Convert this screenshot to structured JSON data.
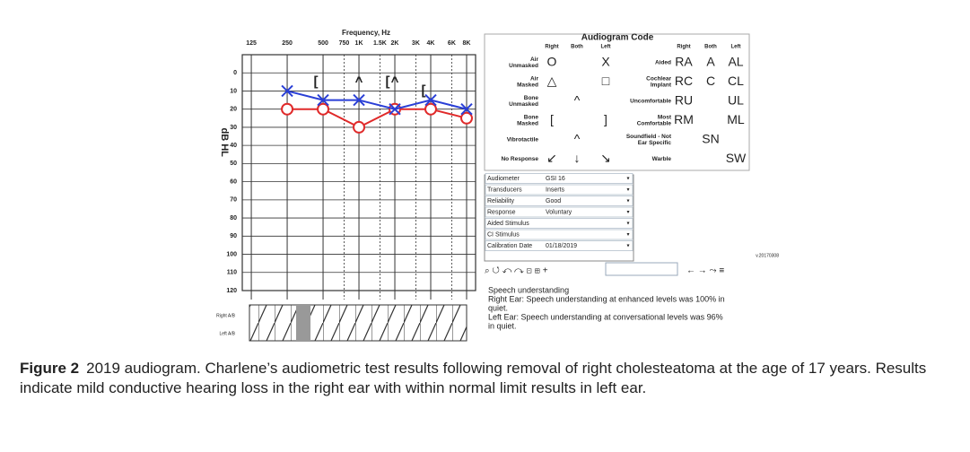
{
  "chart_data": {
    "type": "line",
    "xlabel": "Frequency, Hz",
    "ylabel": "dB HL",
    "xlog": true,
    "y_inverted": true,
    "xlim": [
      105,
      9514
    ],
    "ylim": [
      -10,
      120
    ],
    "xticks": [
      125,
      250,
      500,
      750,
      {
        "value": 1000,
        "label": "1K"
      },
      {
        "value": 1500,
        "label": "1.5K"
      },
      {
        "value": 2000,
        "label": "2K"
      },
      {
        "value": 3000,
        "label": "3K"
      },
      {
        "value": 4000,
        "label": "4K"
      },
      {
        "value": 6000,
        "label": "6K"
      },
      {
        "value": 8000,
        "label": "8K"
      }
    ],
    "yticks": [
      0,
      10,
      20,
      30,
      40,
      50,
      60,
      70,
      80,
      90,
      100,
      110,
      120
    ],
    "grid": true,
    "series": [
      {
        "color": "#e02a2a",
        "marker": "circle",
        "line": true,
        "x": [
          250,
          500,
          1000,
          2000,
          4000,
          8000
        ],
        "values": [
          20,
          20,
          30,
          20,
          20,
          25
        ]
      },
      {
        "color": "#2a3fd6",
        "marker": "x",
        "line": true,
        "x": [
          250,
          500,
          1000,
          2000,
          4000,
          8000
        ],
        "values": [
          10,
          15,
          15,
          20,
          15,
          20
        ]
      },
      {
        "color": "#e02a2a",
        "marker": "[",
        "line": false,
        "x": [
          500,
          2000,
          4000
        ],
        "values": [
          5,
          5,
          10
        ]
      },
      {
        "color": "#222222",
        "marker": "^",
        "line": false,
        "x": [
          1000,
          2000
        ],
        "values": [
          5,
          5
        ]
      }
    ]
  },
  "audiogram_code": {
    "title": "Audiogram Code",
    "headers_left": [
      "Right",
      "Both",
      "Left"
    ],
    "rows_left": [
      {
        "label": [
          "Air",
          "Unmasked"
        ],
        "cells": [
          "O",
          null,
          "X"
        ]
      },
      {
        "label": [
          "Air",
          "Masked"
        ],
        "cells": [
          "△",
          null,
          "□"
        ]
      },
      {
        "label": [
          "Bone",
          "Unmasked"
        ],
        "cells": [
          null,
          "^",
          null
        ]
      },
      {
        "label": [
          "Bone",
          "Masked"
        ],
        "cells": [
          "[",
          null,
          "]"
        ]
      },
      {
        "label": [
          "Vibrotactile"
        ],
        "cells": [
          null,
          "^",
          null
        ]
      },
      {
        "label": [
          "No Response"
        ],
        "cells": [
          "↙",
          "↓",
          "↘"
        ]
      }
    ],
    "headers_right": [
      "Right",
      "Both",
      "Left"
    ],
    "rows_right": [
      {
        "label": [
          "Aided"
        ],
        "cells": [
          "RA",
          "A",
          "AL"
        ]
      },
      {
        "label": [
          "Cochlear",
          "Implant"
        ],
        "cells": [
          "RC",
          "C",
          "CL"
        ]
      },
      {
        "label": [
          "Uncomfortable"
        ],
        "cells": [
          "RU",
          null,
          "UL"
        ]
      },
      {
        "label": [
          "Most",
          "Comfortable"
        ],
        "cells": [
          "RM",
          null,
          "ML"
        ]
      },
      {
        "label": [
          "Soundfield - Not",
          "Ear Specific"
        ],
        "cells": [
          null,
          "SN",
          null
        ]
      },
      {
        "label": [
          "Warble"
        ],
        "cells": [
          null,
          null,
          "SW"
        ]
      }
    ]
  },
  "settings": {
    "rows": [
      {
        "label": "Audiometer",
        "value": "GSI 16"
      },
      {
        "label": "Transducers",
        "value": "Inserts"
      },
      {
        "label": "Reliability",
        "value": "Good"
      },
      {
        "label": "Response",
        "value": "Voluntary"
      },
      {
        "label": "Aided Stimulus"
      },
      {
        "label": "CI Stimulus"
      },
      {
        "label": "Calibration Date",
        "value": "01/18/2019"
      }
    ],
    "version": "v.20170308"
  },
  "notes": [
    "Speech understanding",
    "Right Ear: Speech understanding at enhanced levels was 100% in",
    "quiet.",
    "Left Ear: Speech understanding at conversational levels was 96%",
    "in quiet."
  ],
  "ab_labels": [
    "Right A/B",
    "Left A/B"
  ],
  "caption": {
    "label": "Figure 2",
    "text": "2019 audiogram. Charlene’s audiometric test results following removal of right cholesteatoma at the age of 17 years. Results indicate mild conductive hearing loss in the right ear with within normal limit results in left ear."
  }
}
